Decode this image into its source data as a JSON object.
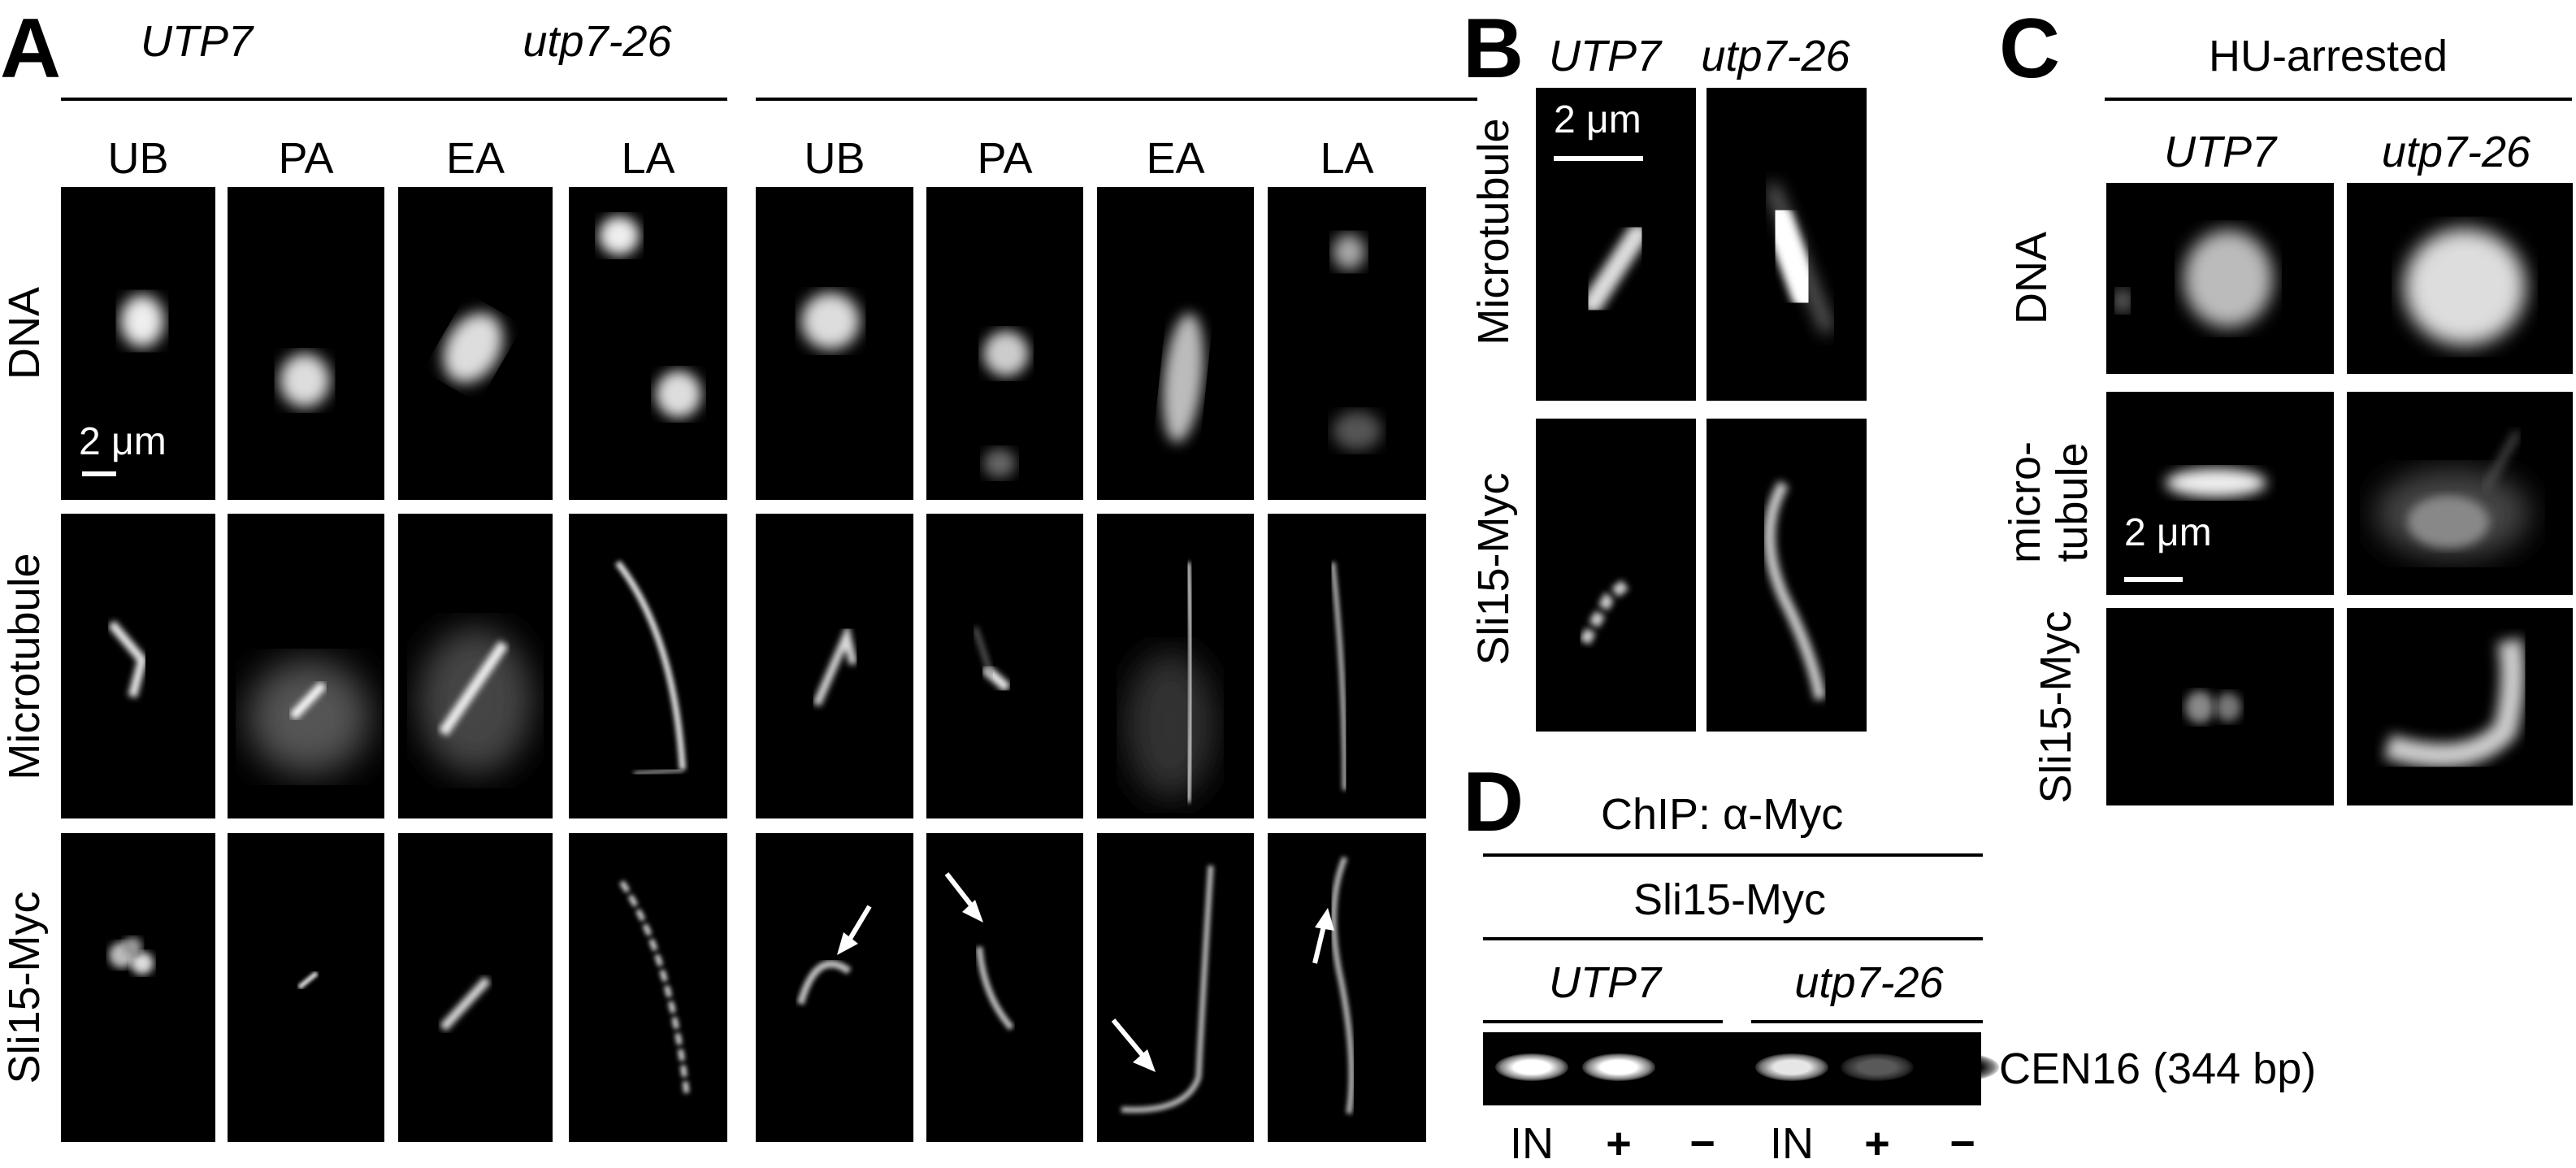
{
  "panel_a": {
    "label": "A",
    "genotypes": [
      "UTP7",
      "utp7-26"
    ],
    "stages": [
      "UB",
      "PA",
      "EA",
      "LA",
      "UB",
      "PA",
      "EA",
      "LA"
    ],
    "rows": [
      "DNA",
      "Microtubule",
      "Sli15-Myc"
    ],
    "scale_bar": "2 μm"
  },
  "panel_b": {
    "label": "B",
    "genotypes": [
      "UTP7",
      "utp7-26"
    ],
    "rows": [
      "Microtubule",
      "Sli15-Myc"
    ],
    "scale_bar": "2 μm"
  },
  "panel_c": {
    "label": "C",
    "title": "HU-arrested",
    "genotypes": [
      "UTP7",
      "utp7-26"
    ],
    "rows": [
      "DNA",
      "micro-",
      "tubule",
      "Sli15-Myc"
    ],
    "scale_bar": "2 μm"
  },
  "panel_d": {
    "label": "D",
    "title": "ChIP: α-Myc",
    "subtitle": "Sli15-Myc",
    "genotypes": [
      "UTP7",
      "utp7-26"
    ],
    "band_label": "CEN16 (344 bp)",
    "lanes": [
      "IN",
      "+",
      "−",
      "IN",
      "+",
      "−"
    ],
    "band_intensity": [
      1.0,
      1.0,
      0.0,
      0.9,
      0.35,
      0.0
    ]
  }
}
